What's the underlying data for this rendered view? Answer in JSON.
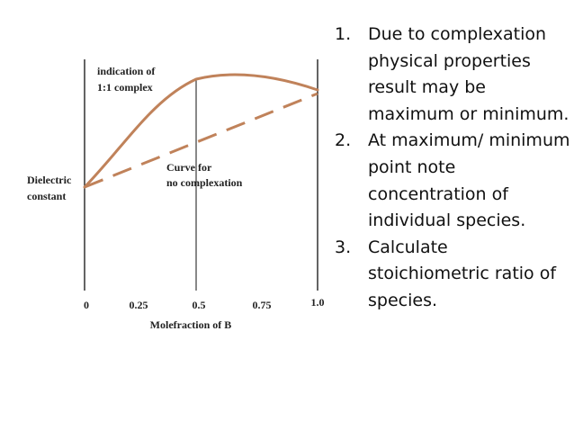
{
  "figure": {
    "ylabel_lines": [
      "Dielectric",
      "constant"
    ],
    "xlabel": "Molefraction of B",
    "x_ticks": [
      "0",
      "0.25",
      "0.5",
      "0.75",
      "1.0"
    ],
    "annotation_complex_lines": [
      "indication of",
      "1:1 complex"
    ],
    "annotation_nocomplex_lines": [
      "Curve for",
      "no complexation"
    ],
    "curve_color": "#c0825a"
  },
  "notes": [
    {
      "number": "1.",
      "text": "Due to complexation physical properties result may be maximum or minimum."
    },
    {
      "number": "2.",
      "text": "At maximum/ minimum point note concentration of individual species."
    },
    {
      "number": "3.",
      "text": "Calculate stoichiometric ratio of species."
    }
  ]
}
